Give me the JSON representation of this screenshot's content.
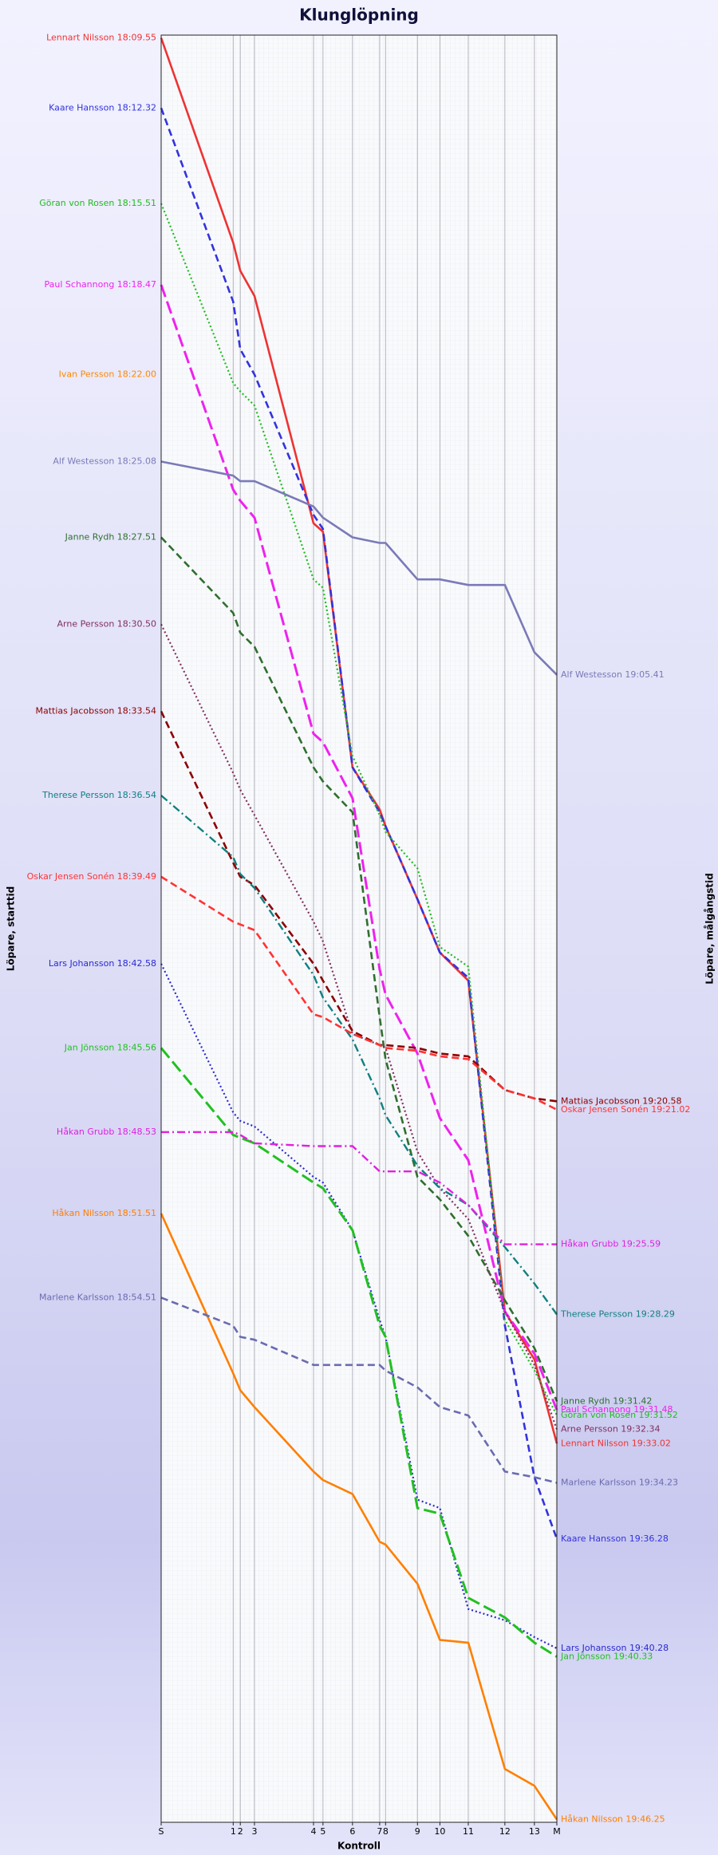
{
  "chart_data": {
    "type": "line",
    "title": "Klunglöpning",
    "y_label_left": "Löpare, starttid",
    "y_label_right": "Löpare, målgångstid",
    "x_label": "Kontroll",
    "x": [
      0,
      61,
      67,
      79,
      129,
      137,
      162,
      185,
      190,
      217,
      236,
      260,
      291,
      316,
      335
    ],
    "xlim": [
      0,
      335
    ],
    "xticks": [
      {
        "value": 0,
        "label": "S"
      },
      {
        "value": 61,
        "label": "1"
      },
      {
        "value": 67,
        "label": "2"
      },
      {
        "value": 79,
        "label": "3"
      },
      {
        "value": 129,
        "label": "4"
      },
      {
        "value": 137,
        "label": "5"
      },
      {
        "value": 162,
        "label": "6"
      },
      {
        "value": 185,
        "label": "7"
      },
      {
        "value": 190,
        "label": "8"
      },
      {
        "value": 217,
        "label": "9"
      },
      {
        "value": 236,
        "label": "10"
      },
      {
        "value": 260,
        "label": "11"
      },
      {
        "value": 291,
        "label": "12"
      },
      {
        "value": 316,
        "label": "13"
      },
      {
        "value": 335,
        "label": "M"
      }
    ],
    "ylim": [
      9.8,
      73.5
    ],
    "y_inverted": true,
    "grid": true,
    "series": [
      {
        "start_label": "Lennart Nilsson 18:09.55",
        "finish_label": "Lennart Nilsson 19:33.02",
        "color": "#ee3333",
        "dash": "solid",
        "values": [
          9.9,
          17.2,
          18.2,
          19.1,
          27.2,
          27.5,
          35.9,
          37.4,
          38.0,
          40.6,
          42.5,
          43.5,
          55.3,
          57.0,
          60.0
        ]
      },
      {
        "start_label": "Kaare Hansson 18:12.32",
        "finish_label": "Kaare Hansson 19:36.28",
        "color": "#3333dd",
        "dash": "dashed",
        "values": [
          12.4,
          19.3,
          21.0,
          21.9,
          26.9,
          27.4,
          35.9,
          37.5,
          38.0,
          40.6,
          42.5,
          43.4,
          55.8,
          61.2,
          63.4
        ]
      },
      {
        "start_label": "Göran von Rosen 18:15.51",
        "finish_label": "Göran von Rosen 19:31.52",
        "color": "#22bb22",
        "dash": "dotted",
        "values": [
          15.8,
          22.2,
          22.5,
          23.0,
          29.2,
          29.5,
          35.5,
          37.6,
          38.2,
          39.5,
          42.3,
          43.0,
          55.6,
          57.4,
          59.0
        ]
      },
      {
        "start_label": "Paul Schannong 18:18.47",
        "finish_label": "Paul Schannong 19:31.48",
        "color": "#ee22ee",
        "dash": "longdash",
        "values": [
          18.7,
          26.0,
          26.4,
          27.0,
          34.7,
          35.0,
          37.0,
          43.1,
          44.0,
          46.1,
          48.4,
          49.9,
          55.3,
          56.8,
          58.8
        ]
      },
      {
        "start_label": "Ivan Persson 18:22.00",
        "color": "#ff8800",
        "dash": "solid",
        "values": [
          21.9,
          null,
          null,
          null,
          null,
          null,
          null,
          null,
          null,
          null,
          null,
          null,
          null,
          null,
          null
        ]
      },
      {
        "start_label": "Alf Westesson 18:25.08",
        "finish_label": "Alf Westesson 19:05.41",
        "color": "#7a7ab8",
        "dash": "solid",
        "values": [
          25.0,
          25.5,
          25.7,
          25.7,
          26.6,
          27.0,
          27.7,
          27.9,
          27.9,
          29.2,
          29.2,
          29.4,
          29.4,
          31.8,
          32.6
        ]
      },
      {
        "start_label": "Janne Rydh 18:27.51",
        "finish_label": "Janne Rydh 19:31.42",
        "color": "#2f6f2f",
        "dash": "dashed",
        "values": [
          27.7,
          30.4,
          31.1,
          31.6,
          35.9,
          36.4,
          37.5,
          44.8,
          46.3,
          50.5,
          51.3,
          52.6,
          54.9,
          56.6,
          58.5
        ]
      },
      {
        "start_label": "Arne Persson 18:30.50",
        "finish_label": "Arne Persson 19:32.34",
        "color": "#803060",
        "dash": "dotted",
        "values": [
          30.8,
          36.1,
          36.7,
          37.6,
          41.4,
          42.1,
          45.4,
          45.8,
          45.9,
          49.6,
          50.9,
          52.0,
          55.3,
          57.2,
          59.5
        ]
      },
      {
        "start_label": "Mattias Jacobsson 18:33.54",
        "finish_label": "Mattias Jacobsson 19:20.58",
        "color": "#8b0000",
        "dash": "dashed",
        "values": [
          33.9,
          39.3,
          39.8,
          40.1,
          42.9,
          43.5,
          45.3,
          45.8,
          45.8,
          45.9,
          46.1,
          46.2,
          47.4,
          47.7,
          47.8
        ]
      },
      {
        "start_label": "Therese Persson 18:36.54",
        "finish_label": "Therese Persson 19:28.29",
        "color": "#108080",
        "dash": "dashdot",
        "values": [
          36.9,
          39.1,
          39.7,
          40.2,
          43.3,
          44.1,
          45.6,
          47.7,
          48.3,
          50.1,
          50.9,
          51.5,
          53.0,
          54.3,
          55.4
        ]
      },
      {
        "start_label": "Oskar Jensen Sonén 18:39.49",
        "finish_label": "Oskar Jensen Sonén 19:21.02",
        "color": "#ff3333",
        "dash": "dashed",
        "values": [
          39.8,
          41.4,
          41.5,
          41.7,
          44.7,
          44.8,
          45.4,
          45.8,
          45.9,
          46.0,
          46.2,
          46.3,
          47.4,
          47.7,
          48.1
        ]
      },
      {
        "start_label": "Lars Johansson 18:42.58",
        "finish_label": "Lars Johansson 19:40.28",
        "color": "#2a2ad0",
        "dash": "dotted",
        "values": [
          42.9,
          48.2,
          48.5,
          48.7,
          50.5,
          50.7,
          52.4,
          55.6,
          56.2,
          62.0,
          62.3,
          65.9,
          66.3,
          66.9,
          67.3
        ]
      },
      {
        "start_label": "Jan Jönsson 18:45.56",
        "finish_label": "Jan Jönsson 19:40.33",
        "color": "#22c022",
        "dash": "longdash",
        "values": [
          45.9,
          49.0,
          49.1,
          49.3,
          50.7,
          50.9,
          52.4,
          55.8,
          56.2,
          62.3,
          62.5,
          65.5,
          66.2,
          67.1,
          67.6
        ]
      },
      {
        "start_label": "Håkan Grubb 18:48.53",
        "finish_label": "Håkan Grubb 19:25.59",
        "color": "#e020e0",
        "dash": "dashdot",
        "values": [
          48.9,
          48.9,
          49.0,
          49.3,
          49.4,
          49.4,
          49.4,
          50.3,
          50.3,
          50.3,
          50.7,
          51.5,
          52.9,
          52.9,
          52.9
        ]
      },
      {
        "start_label": "Håkan Nilsson 18:51.51",
        "finish_label": "Håkan Nilsson 19:46.25",
        "color": "#ff7f00",
        "dash": "solid",
        "values": [
          51.8,
          57.5,
          58.1,
          58.7,
          61.0,
          61.3,
          61.8,
          63.5,
          63.6,
          65.0,
          67.0,
          67.1,
          71.6,
          72.2,
          73.4
        ]
      },
      {
        "start_label": "Marlene Karlsson 18:54.51",
        "finish_label": "Marlene Karlsson 19:34.23",
        "color": "#6b6bb0",
        "dash": "dashed",
        "values": [
          54.8,
          55.8,
          56.2,
          56.3,
          57.2,
          57.2,
          57.2,
          57.2,
          57.4,
          58.0,
          58.7,
          59.0,
          61.0,
          61.2,
          61.4
        ]
      }
    ]
  }
}
